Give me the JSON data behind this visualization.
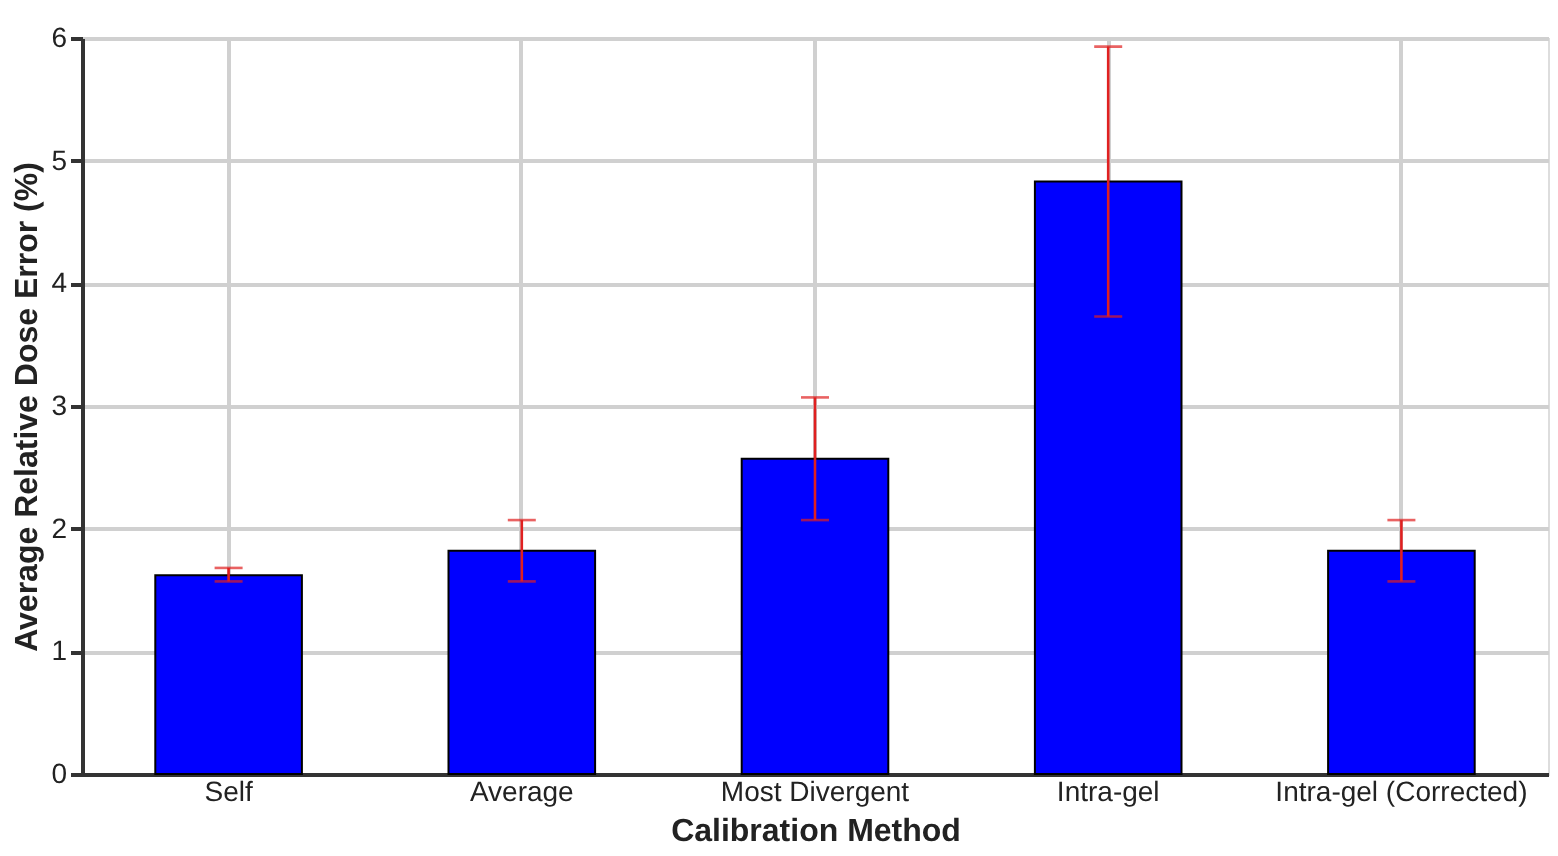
{
  "chart_data": {
    "type": "bar",
    "xlabel": "Calibration Method",
    "ylabel": "Average Relative Dose Error (%)",
    "categories": [
      "Self",
      "Average",
      "Most Divergent",
      "Intra-gel",
      "Intra-gel (Corrected)"
    ],
    "values": [
      1.62,
      1.82,
      2.57,
      4.83,
      1.82
    ],
    "errors": [
      [
        1.57,
        1.68
      ],
      [
        1.57,
        2.07
      ],
      [
        2.07,
        3.07
      ],
      [
        3.73,
        5.93
      ],
      [
        1.57,
        2.07
      ]
    ],
    "color": "#0000ff",
    "ylim": [
      0,
      6
    ],
    "yticks": [
      0,
      1,
      2,
      3,
      4,
      5,
      6
    ],
    "grid": true
  }
}
